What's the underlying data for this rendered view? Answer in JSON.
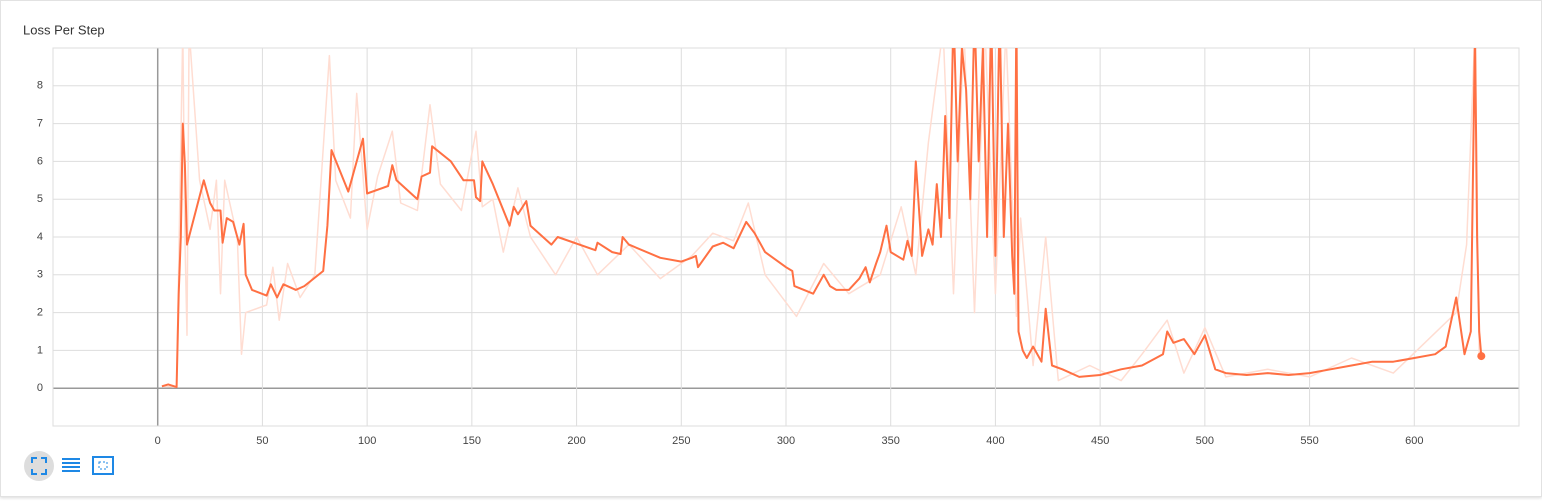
{
  "chart_data": {
    "type": "line",
    "title": "Loss Per Step",
    "xlim": [
      -50,
      650
    ],
    "xticks": [
      0,
      50,
      100,
      150,
      200,
      250,
      300,
      350,
      400,
      450,
      500,
      550,
      600
    ],
    "ylim": [
      -1,
      9
    ],
    "yticks": [
      0,
      1,
      2,
      3,
      4,
      5,
      6,
      7,
      8
    ],
    "grid": true,
    "series": [
      {
        "color": "#ffddd2",
        "x": [
          2,
          9,
          12,
          13,
          14,
          15,
          20,
          25,
          28,
          30,
          32,
          38,
          40,
          42,
          52,
          55,
          58,
          62,
          68,
          75,
          82,
          85,
          92,
          95,
          100,
          105,
          112,
          116,
          124,
          130,
          135,
          145,
          152,
          155,
          160,
          165,
          172,
          178,
          190,
          200,
          210,
          225,
          240,
          255,
          265,
          275,
          282,
          290,
          305,
          318,
          330,
          345,
          355,
          362,
          368,
          375,
          380,
          385,
          390,
          395,
          400,
          405,
          410,
          412,
          418,
          424,
          430,
          445,
          460,
          470,
          482,
          490,
          500,
          510,
          530,
          550,
          570,
          590,
          605,
          620,
          625,
          629,
          631,
          632
        ],
        "values": [
          0.05,
          0.03,
          9.5,
          4,
          1.4,
          9.5,
          5.5,
          4.2,
          5.5,
          2.5,
          5.5,
          4.0,
          0.9,
          2.0,
          2.2,
          3.2,
          1.8,
          3.3,
          2.4,
          3.0,
          8.8,
          5.5,
          4.5,
          7.8,
          4.2,
          5.6,
          6.8,
          4.9,
          4.7,
          7.5,
          5.4,
          4.7,
          6.8,
          4.8,
          5.0,
          3.6,
          5.3,
          4.0,
          3.0,
          4.0,
          3.0,
          3.8,
          2.9,
          3.5,
          4.1,
          3.9,
          4.9,
          3.0,
          1.9,
          3.3,
          2.5,
          3.0,
          4.8,
          3.0,
          6.5,
          9.5,
          2.5,
          9.5,
          2.0,
          9.5,
          2.5,
          9.5,
          1.9,
          4.5,
          0.6,
          4.0,
          0.2,
          0.6,
          0.2,
          0.9,
          1.8,
          0.4,
          1.6,
          0.3,
          0.5,
          0.3,
          0.8,
          0.4,
          1.2,
          2.0,
          3.8,
          9.5,
          0.8,
          0.9
        ]
      },
      {
        "color": "#ff7043",
        "x": [
          2,
          5,
          9,
          10,
          11,
          12,
          13,
          14,
          22,
          25,
          27,
          30,
          31,
          33,
          36,
          39,
          41,
          42,
          45,
          52,
          54,
          57,
          60,
          66,
          70,
          79,
          81,
          83,
          91,
          95,
          98,
          100,
          110,
          112,
          114,
          124,
          126,
          130,
          131,
          140,
          146,
          151,
          152,
          154,
          155,
          160,
          168,
          170,
          172,
          176,
          178,
          188,
          191,
          209,
          210,
          217,
          221,
          222,
          225,
          240,
          250,
          255,
          257,
          258,
          265,
          270,
          275,
          281,
          285,
          290,
          300,
          303,
          304,
          313,
          318,
          321,
          324,
          330,
          335,
          338,
          340,
          343,
          345,
          348,
          350,
          356,
          358,
          360,
          362,
          365,
          368,
          370,
          372,
          374,
          376,
          378,
          380,
          382,
          384,
          386,
          388,
          390,
          392,
          394,
          396,
          398,
          400,
          402,
          404,
          406,
          408,
          409,
          410,
          411,
          413,
          415,
          418,
          422,
          424,
          427,
          432,
          440,
          450,
          460,
          470,
          480,
          482,
          485,
          490,
          495,
          500,
          505,
          510,
          520,
          530,
          540,
          550,
          560,
          570,
          580,
          590,
          600,
          610,
          615,
          620,
          624,
          627,
          629,
          630,
          631,
          632
        ],
        "values": [
          0.05,
          0.1,
          0.03,
          2.5,
          4,
          7,
          5.9,
          3.8,
          5.5,
          4.9,
          4.7,
          4.7,
          3.85,
          4.5,
          4.4,
          3.8,
          4.35,
          3,
          2.6,
          2.45,
          2.75,
          2.4,
          2.75,
          2.6,
          2.7,
          3.1,
          4.3,
          6.3,
          5.2,
          6,
          6.6,
          5.15,
          5.35,
          5.9,
          5.5,
          5.0,
          5.6,
          5.7,
          6.4,
          6.0,
          5.5,
          5.5,
          5.05,
          4.95,
          6.0,
          5.4,
          4.3,
          4.8,
          4.6,
          4.95,
          4.3,
          3.8,
          4.0,
          3.65,
          3.85,
          3.6,
          3.55,
          4.0,
          3.8,
          3.45,
          3.35,
          3.45,
          3.5,
          3.2,
          3.75,
          3.85,
          3.7,
          4.4,
          4.1,
          3.6,
          3.2,
          3.1,
          2.7,
          2.5,
          3.0,
          2.7,
          2.6,
          2.6,
          2.9,
          3.2,
          2.8,
          3.3,
          3.6,
          4.3,
          3.6,
          3.4,
          3.9,
          3.5,
          6.0,
          3.5,
          4.2,
          3.8,
          5.4,
          4.0,
          7.2,
          4.5,
          10,
          6,
          9,
          7.9,
          5,
          10,
          6,
          9,
          4,
          10,
          3.5,
          10,
          4,
          7,
          3.5,
          2.5,
          10,
          1.5,
          1,
          0.8,
          1.1,
          0.7,
          2.1,
          0.6,
          0.5,
          0.3,
          0.35,
          0.5,
          0.6,
          0.9,
          1.5,
          1.2,
          1.3,
          0.9,
          1.4,
          0.5,
          0.4,
          0.35,
          0.4,
          0.35,
          0.4,
          0.5,
          0.6,
          0.7,
          0.7,
          0.8,
          0.9,
          1.1,
          2.4,
          0.9,
          1.5,
          9.5,
          4,
          1.5,
          0.85
        ]
      }
    ]
  }
}
